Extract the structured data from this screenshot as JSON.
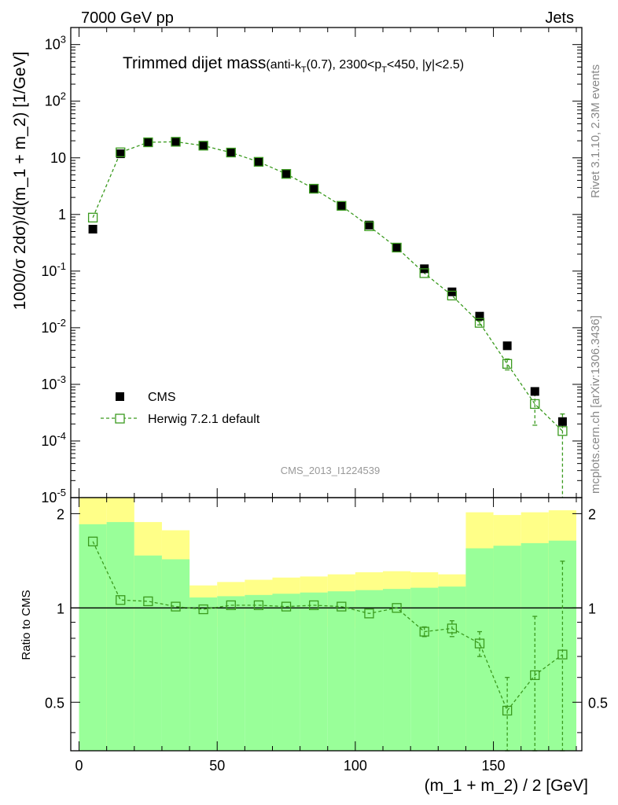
{
  "header": {
    "energy_label": "7000 GeV pp",
    "process_label": "Jets",
    "rivet_label": "Rivet 3.1.10,  2.3M events",
    "mcplots_label": "mcplots.cern.ch [arXiv:1306.3436]",
    "analysis_id": "CMS_2013_I1224539"
  },
  "chart_data": [
    {
      "type": "scatter",
      "panel": "main",
      "title_main": "Trimmed dijet mass",
      "title_sub": "(anti-k",
      "title_sub_k_index": "T",
      "title_sub_mid": "(0.7), 2300<p",
      "title_sub_p_index": "T",
      "title_sub_end": "<450, |y|<2.5)",
      "ylabel": "1000/σ 2dσ)/d(m_1 + m_2) [1/GeV]",
      "yscale": "log",
      "ylim": [
        1e-05,
        2000
      ],
      "xlim": [
        -3,
        182
      ],
      "ytick_base": "10",
      "ytick_exponents": [
        "-5",
        "-4",
        "-3",
        "-2",
        "-1",
        "",
        "",
        "2",
        "3"
      ],
      "ytick_plain": [
        "",
        "",
        "",
        "",
        "",
        "1",
        "10",
        "",
        ""
      ],
      "ytick_values": [
        1e-05,
        0.0001,
        0.001,
        0.01,
        0.1,
        1,
        10,
        100,
        1000
      ],
      "legend_position": "bottom-left",
      "series": [
        {
          "name": "CMS",
          "marker": "filled-square",
          "color": "#000000",
          "x": [
            5,
            15,
            25,
            35,
            45,
            55,
            65,
            75,
            85,
            95,
            105,
            115,
            125,
            135,
            145,
            155,
            165,
            175
          ],
          "y": [
            0.55,
            11.8,
            18.5,
            19.0,
            16.5,
            12.3,
            8.4,
            5.2,
            2.8,
            1.4,
            0.65,
            0.26,
            0.11,
            0.043,
            0.016,
            0.0048,
            0.00075,
            0.00022
          ]
        },
        {
          "name": "Herwig 7.2.1 default",
          "marker": "open-square",
          "line": "dashed",
          "color": "#3a9a1e",
          "x": [
            5,
            15,
            25,
            35,
            45,
            55,
            65,
            75,
            85,
            95,
            105,
            115,
            125,
            135,
            145,
            155,
            165,
            175
          ],
          "y": [
            0.88,
            12.5,
            18.8,
            19.2,
            16.4,
            12.4,
            8.5,
            5.2,
            2.85,
            1.42,
            0.62,
            0.26,
            0.092,
            0.037,
            0.0122,
            0.0023,
            0.00045,
            0.00015
          ],
          "err_low": [
            0,
            0,
            0,
            0,
            0,
            0,
            0,
            0,
            0,
            0,
            0,
            0,
            0,
            0,
            0.001,
            0.0005,
            0.00026,
            0.00015
          ],
          "err_high": [
            0,
            0,
            0,
            0,
            0,
            0,
            0,
            0,
            0,
            0,
            0,
            0,
            0,
            0,
            0.001,
            0.0005,
            0.00025,
            0.00015
          ]
        }
      ]
    },
    {
      "type": "scatter",
      "panel": "ratio",
      "ylabel": "Ratio to CMS",
      "xlabel": "(m_1 + m_2) / 2 [GeV]",
      "ylim": [
        0.35,
        2.25
      ],
      "xlim": [
        -3,
        182
      ],
      "yticks": [
        0.5,
        1,
        2
      ],
      "ytick_labels": [
        "0.5",
        "1",
        "2"
      ],
      "xticks": [
        0,
        50,
        100,
        150
      ],
      "xtick_labels": [
        "0",
        "50",
        "100",
        "150"
      ],
      "reference_line": 1,
      "bands": {
        "edges": [
          0,
          10,
          20,
          30,
          40,
          50,
          60,
          70,
          80,
          90,
          100,
          110,
          120,
          130,
          140,
          150,
          160,
          170,
          180
        ],
        "inner_color": "#99ff99",
        "outer_color": "#ffff88",
        "inner_low": [
          0.35,
          0.35,
          0.35,
          0.35,
          0.35,
          0.35,
          0.35,
          0.35,
          0.35,
          0.35,
          0.35,
          0.35,
          0.35,
          0.35,
          0.35,
          0.35,
          0.35,
          0.35
        ],
        "inner_high": [
          1.85,
          1.88,
          1.47,
          1.43,
          1.08,
          1.09,
          1.1,
          1.11,
          1.12,
          1.13,
          1.14,
          1.15,
          1.16,
          1.17,
          1.55,
          1.58,
          1.61,
          1.64
        ],
        "outer_low": [
          0.35,
          0.35,
          0.59,
          0.71,
          0.88,
          0.87,
          0.87,
          0.88,
          0.88,
          0.87,
          0.86,
          0.84,
          0.79,
          0.7,
          0.35,
          0.35,
          0.35,
          0.38
        ],
        "outer_high": [
          2.25,
          2.25,
          1.88,
          1.77,
          1.18,
          1.21,
          1.23,
          1.25,
          1.26,
          1.28,
          1.3,
          1.31,
          1.3,
          1.28,
          2.02,
          1.98,
          2.02,
          2.05
        ]
      },
      "series": [
        {
          "name": "Herwig 7.2.1 default / CMS",
          "marker": "open-square",
          "line": "dashed",
          "color": "#3a9a1e",
          "x": [
            5,
            15,
            25,
            35,
            45,
            55,
            65,
            75,
            85,
            95,
            105,
            115,
            125,
            135,
            145,
            155,
            165,
            175
          ],
          "y": [
            1.63,
            1.06,
            1.05,
            1.01,
            0.99,
            1.02,
            1.02,
            1.01,
            1.02,
            1.01,
            0.96,
            1.0,
            0.84,
            0.86,
            0.77,
            0.47,
            0.61,
            0.71
          ],
          "err_low": [
            0,
            0,
            0,
            0,
            0,
            0,
            0,
            0,
            0,
            0,
            0,
            0,
            0.03,
            0.05,
            0.07,
            0.13,
            0.26,
            0.36
          ],
          "err_high": [
            0,
            0,
            0,
            0,
            0,
            0,
            0,
            0,
            0,
            0,
            0,
            0,
            0.03,
            0.05,
            0.07,
            0.13,
            0.33,
            0.7
          ]
        }
      ]
    }
  ]
}
